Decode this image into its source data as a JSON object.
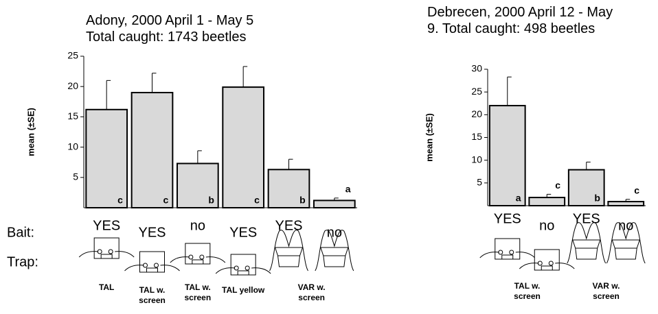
{
  "chart_data": [
    {
      "type": "bar",
      "title": "Adony, 2000 April 1 - May 5",
      "subtitle": "Total caught: 1743 beetles",
      "ylabel": "mean (±SE)",
      "row_labels": [
        "Bait:",
        "Trap:"
      ],
      "categories": [
        "TAL",
        "TAL w. screen",
        "TAL w. screen",
        "TAL yellow",
        "VAR w. screen",
        null
      ],
      "bait": [
        "YES",
        "YES",
        "no",
        "YES",
        "YES",
        "no"
      ],
      "values": [
        16.2,
        19,
        7.3,
        19.9,
        6.3,
        1.2
      ],
      "errors": [
        4.8,
        3.2,
        2.1,
        3.4,
        1.7,
        0.4
      ],
      "letters": [
        "c",
        "c",
        "b",
        "c",
        "b",
        "a"
      ],
      "color": "#d9d9d9",
      "ylim": [
        0,
        25
      ],
      "yticks": [
        5,
        10,
        15,
        20,
        25
      ]
    },
    {
      "type": "bar",
      "title": "Debrecen, 2000 April 12 - May",
      "subtitle": "9. Total caught: 498 beetles",
      "ylabel": "mean (±SE)",
      "categories": [
        "TAL w. screen",
        null,
        "VAR w. screen",
        null
      ],
      "bait": [
        "YES",
        "no",
        "YES",
        "no"
      ],
      "values": [
        22,
        1.8,
        7.9,
        0.9
      ],
      "errors": [
        6.3,
        0.7,
        1.7,
        0.5
      ],
      "letters": [
        "a",
        "c",
        "b",
        "c"
      ],
      "color": "#d9d9d9",
      "ylim": [
        0,
        30
      ],
      "yticks": [
        5,
        10,
        15,
        20,
        25,
        30
      ]
    }
  ]
}
